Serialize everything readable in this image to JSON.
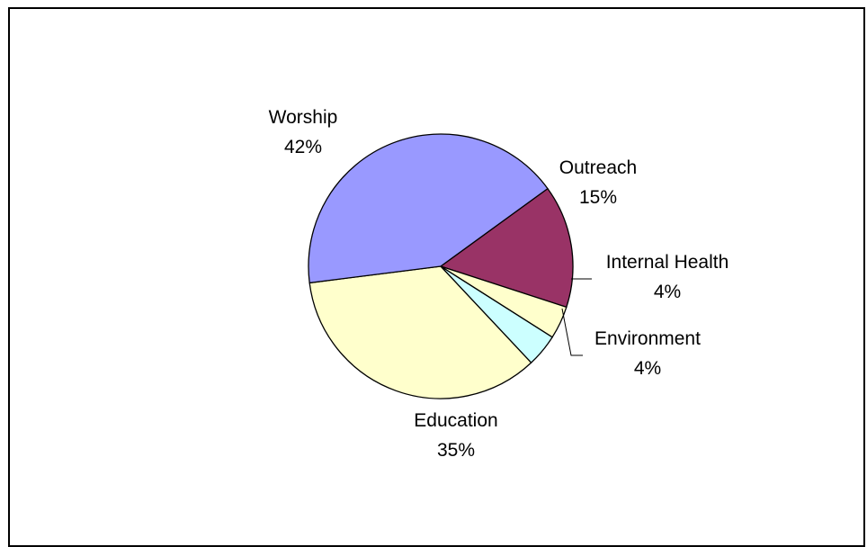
{
  "chart_data": {
    "type": "pie",
    "title": "",
    "slices": [
      {
        "label": "Outreach",
        "value": 15,
        "value_label": "15%",
        "color": "#993366"
      },
      {
        "label": "Internal Health",
        "value": 4,
        "value_label": "4%",
        "color": "#FFFFCC"
      },
      {
        "label": "Environment",
        "value": 4,
        "value_label": "4%",
        "color": "#CCFFFF"
      },
      {
        "label": "Education",
        "value": 35,
        "value_label": "35%",
        "color": "#FFFFCC"
      },
      {
        "label": "Worship",
        "value": 42,
        "value_label": "42%",
        "color": "#9999FF"
      }
    ],
    "start_angle_deg": 54,
    "direction": "clockwise",
    "slice_border_color": "#000000",
    "legend": "none",
    "labels": "outside, category name and percentage"
  }
}
